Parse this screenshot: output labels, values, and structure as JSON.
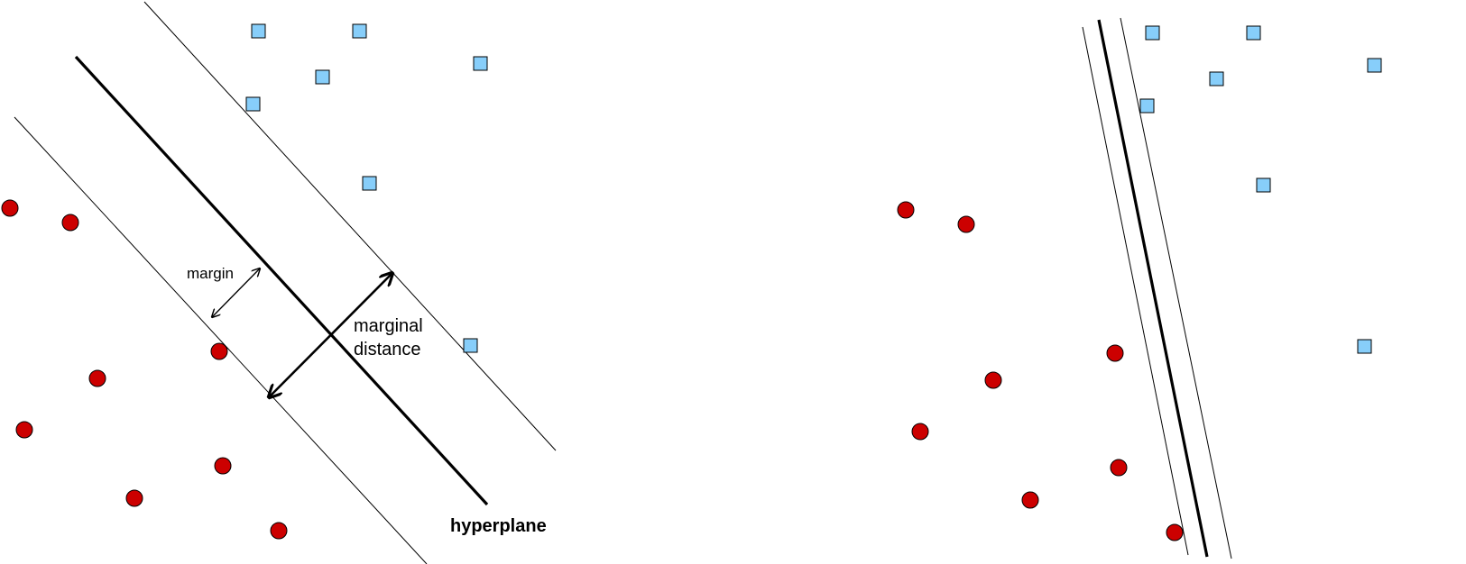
{
  "left_panel": {
    "labels": {
      "margin": "margin",
      "marginal_line1": "marginal",
      "marginal_line2": "distance",
      "hyperplane": "hyperplane"
    }
  },
  "right_panel": {},
  "colors": {
    "square_fill": "#87CEFA",
    "circle_fill": "#CC0000",
    "line": "#000000"
  }
}
